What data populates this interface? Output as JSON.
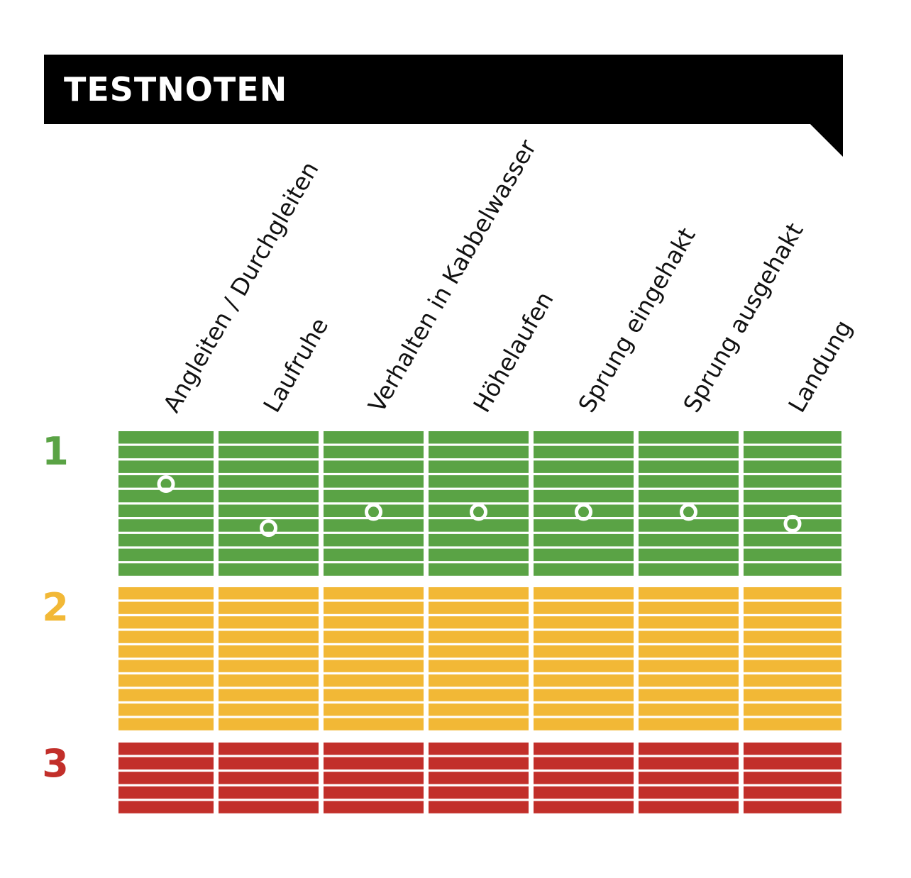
{
  "title": "TESTNOTEN",
  "colors": {
    "banner": "#000000",
    "grade_1": "#5aa345",
    "grade_2": "#f2b836",
    "grade_3": "#c22f2a",
    "marker": "#ffffff"
  },
  "chart_data": {
    "type": "heatmap",
    "title": "TESTNOTEN",
    "xlabel": "",
    "ylabel": "",
    "categories": [
      "Angleiten / Durchgleiten",
      "Laufruhe",
      "Verhalten in Kabbelwasser",
      "Höhelaufen",
      "Sprung eingehakt",
      "Sprung ausgehakt",
      "Landung"
    ],
    "grades": [
      "1",
      "2",
      "3"
    ],
    "ylim": [
      1,
      3.6
    ],
    "values": [
      1.36,
      1.66,
      1.55,
      1.55,
      1.55,
      1.55,
      1.63
    ],
    "grid": true,
    "legend": "none"
  }
}
